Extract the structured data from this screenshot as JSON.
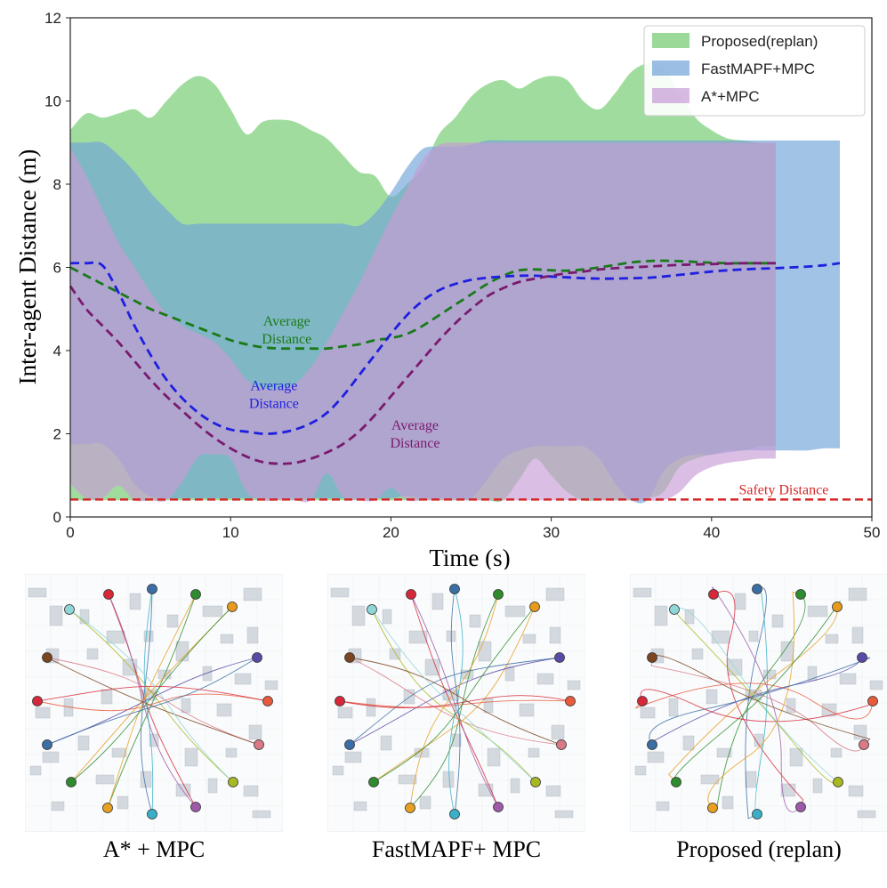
{
  "chart_data": {
    "type": "area",
    "title": "",
    "xlabel": "Time (s)",
    "ylabel": "Inter-agent Distance (m)",
    "xlim": [
      0,
      50
    ],
    "ylim": [
      0,
      12
    ],
    "xticks": [
      0,
      10,
      20,
      30,
      40,
      50
    ],
    "yticks": [
      0,
      2,
      4,
      6,
      8,
      10,
      12
    ],
    "legend_position": "top-right",
    "series": [
      {
        "name": "Proposed(replan)",
        "color": "#6fc96b",
        "x": [
          0,
          1,
          2,
          3,
          4,
          5,
          6,
          7,
          8,
          9,
          10,
          11,
          12,
          13,
          14,
          15,
          16,
          17,
          18,
          19,
          20,
          21,
          22,
          23,
          24,
          25,
          26,
          27,
          28,
          29,
          30,
          31,
          32,
          33,
          34,
          35,
          36,
          37,
          38,
          39,
          40,
          41,
          42,
          43,
          44
        ],
        "upper": [
          9.3,
          9.7,
          9.6,
          9.7,
          9.8,
          9.6,
          10.0,
          10.4,
          10.6,
          10.4,
          9.8,
          9.2,
          9.5,
          9.55,
          9.5,
          9.3,
          9.1,
          8.7,
          8.3,
          8.2,
          7.7,
          8.0,
          8.4,
          9.2,
          9.6,
          10.1,
          10.4,
          10.5,
          10.3,
          10.5,
          10.6,
          10.5,
          10.0,
          9.8,
          10.2,
          10.7,
          10.9,
          10.8,
          10.2,
          9.6,
          9.3,
          9.1,
          9.05,
          9.0,
          9.0
        ],
        "lower": [
          0.4,
          0.4,
          0.4,
          0.4,
          0.4,
          0.4,
          0.4,
          0.4,
          0.4,
          0.4,
          0.4,
          0.4,
          0.4,
          0.4,
          0.4,
          0.4,
          0.4,
          0.4,
          0.4,
          0.4,
          0.4,
          0.4,
          0.4,
          0.4,
          0.4,
          0.4,
          0.4,
          0.4,
          0.9,
          1.4,
          1.0,
          0.6,
          0.4,
          0.4,
          0.4,
          0.4,
          0.45,
          0.6,
          1.2,
          1.4,
          1.5,
          1.6,
          1.6,
          1.7,
          1.7
        ],
        "average": [
          6.0,
          5.8,
          5.6,
          5.4,
          5.2,
          5.0,
          4.85,
          4.7,
          4.55,
          4.4,
          4.25,
          4.15,
          4.08,
          4.05,
          4.05,
          4.05,
          4.05,
          4.1,
          4.15,
          4.25,
          4.3,
          4.4,
          4.6,
          4.85,
          5.1,
          5.35,
          5.6,
          5.8,
          5.93,
          5.95,
          5.93,
          5.92,
          5.95,
          6.0,
          6.06,
          6.12,
          6.15,
          6.16,
          6.15,
          6.13,
          6.11,
          6.1,
          6.1,
          6.1,
          6.1
        ]
      },
      {
        "name": "FastMAPF+MPC",
        "color": "#6fa3d8",
        "x": [
          0,
          1,
          2,
          3,
          4,
          5,
          6,
          7,
          8,
          9,
          10,
          11,
          12,
          13,
          14,
          15,
          16,
          17,
          18,
          19,
          20,
          21,
          22,
          23,
          24,
          25,
          26,
          27,
          28,
          29,
          30,
          31,
          32,
          33,
          34,
          35,
          36,
          37,
          38,
          39,
          40,
          41,
          42,
          43,
          44,
          45,
          46,
          47,
          48
        ],
        "upper": [
          9.0,
          9.0,
          9.0,
          8.7,
          8.3,
          7.8,
          7.4,
          7.05,
          7.05,
          7.05,
          7.05,
          7.05,
          7.05,
          7.05,
          7.05,
          7.05,
          7.05,
          7.05,
          7.0,
          7.3,
          7.8,
          8.4,
          8.85,
          8.9,
          8.9,
          8.95,
          9.05,
          9.05,
          9.05,
          9.05,
          9.05,
          9.05,
          9.05,
          9.05,
          9.05,
          9.05,
          9.05,
          9.05,
          9.05,
          9.05,
          9.05,
          9.05,
          9.05,
          9.05,
          9.05,
          9.05,
          9.05,
          9.05,
          9.05
        ],
        "lower": [
          1.75,
          1.75,
          1.75,
          1.4,
          0.8,
          0.5,
          0.45,
          0.45,
          0.45,
          0.45,
          0.45,
          0.45,
          0.45,
          0.45,
          0.45,
          0.45,
          0.45,
          0.45,
          0.45,
          0.45,
          0.45,
          0.5,
          0.45,
          0.45,
          0.45,
          0.45,
          0.9,
          1.4,
          1.6,
          1.7,
          1.7,
          1.7,
          1.7,
          1.4,
          0.8,
          0.4,
          0.4,
          1.1,
          1.4,
          1.5,
          1.5,
          1.55,
          1.6,
          1.6,
          1.6,
          1.6,
          1.6,
          1.65,
          1.65
        ],
        "average": [
          6.1,
          6.1,
          6.05,
          5.4,
          4.6,
          3.9,
          3.3,
          2.85,
          2.5,
          2.25,
          2.1,
          2.05,
          2.0,
          2.02,
          2.1,
          2.25,
          2.5,
          2.9,
          3.4,
          3.9,
          4.4,
          4.85,
          5.2,
          5.45,
          5.6,
          5.7,
          5.75,
          5.78,
          5.8,
          5.8,
          5.78,
          5.76,
          5.74,
          5.73,
          5.73,
          5.74,
          5.75,
          5.78,
          5.82,
          5.86,
          5.9,
          5.93,
          5.95,
          5.97,
          5.98,
          6.0,
          6.02,
          6.05,
          6.1
        ]
      },
      {
        "name": "A*+MPC",
        "color": "#c79bd6",
        "x": [
          0,
          1,
          2,
          3,
          4,
          5,
          6,
          7,
          8,
          9,
          10,
          11,
          12,
          13,
          14,
          15,
          16,
          17,
          18,
          19,
          20,
          21,
          22,
          23,
          24,
          25,
          26,
          27,
          28,
          29,
          30,
          31,
          32,
          33,
          34,
          35,
          36,
          37,
          38,
          39,
          40,
          41,
          42,
          43,
          44
        ],
        "upper": [
          8.9,
          8.2,
          7.4,
          6.6,
          6.0,
          5.4,
          4.9,
          4.6,
          4.4,
          4.2,
          3.8,
          3.3,
          3.1,
          3.1,
          3.2,
          3.6,
          4.2,
          4.9,
          5.6,
          6.4,
          7.2,
          7.9,
          8.6,
          8.95,
          9.0,
          9.0,
          9.0,
          9.0,
          9.0,
          9.0,
          9.0,
          9.0,
          9.0,
          9.0,
          9.0,
          9.0,
          9.0,
          9.0,
          9.0,
          9.0,
          9.0,
          9.0,
          9.0,
          9.0,
          9.0
        ],
        "lower": [
          0.8,
          0.45,
          0.45,
          0.75,
          0.4,
          0.4,
          0.4,
          0.85,
          1.45,
          1.5,
          1.4,
          0.6,
          0.4,
          0.4,
          0.4,
          0.4,
          1.05,
          0.5,
          0.4,
          0.4,
          0.7,
          0.4,
          0.4,
          0.4,
          0.4,
          0.4,
          0.4,
          0.4,
          0.4,
          0.4,
          0.4,
          0.4,
          0.4,
          0.4,
          0.4,
          0.4,
          0.4,
          0.4,
          0.6,
          1.0,
          1.2,
          1.3,
          1.35,
          1.4,
          1.4
        ],
        "average": [
          5.55,
          5.0,
          4.6,
          4.2,
          3.75,
          3.3,
          2.9,
          2.55,
          2.2,
          1.9,
          1.65,
          1.45,
          1.32,
          1.28,
          1.3,
          1.4,
          1.55,
          1.75,
          2.05,
          2.45,
          2.9,
          3.35,
          3.8,
          4.25,
          4.65,
          5.0,
          5.3,
          5.5,
          5.65,
          5.73,
          5.8,
          5.86,
          5.9,
          5.95,
          5.98,
          6.0,
          6.02,
          6.04,
          6.06,
          6.07,
          6.08,
          6.09,
          6.1,
          6.1,
          6.1
        ]
      }
    ],
    "safety_distance": {
      "value": 0.42,
      "label": "Safety Distance",
      "color": "#d62728"
    },
    "annotations": [
      {
        "text_lines": [
          "Average",
          "Distance"
        ],
        "series": "Proposed(replan)",
        "x": 13.5,
        "y": 4.6
      },
      {
        "text_lines": [
          "Average",
          "Distance"
        ],
        "series": "FastMAPF+MPC",
        "x": 12.7,
        "y": 3.05
      },
      {
        "text_lines": [
          "Average",
          "Distance"
        ],
        "series": "A*+MPC",
        "x": 21.5,
        "y": 2.1
      }
    ]
  },
  "panels": [
    {
      "caption": "A* + MPC",
      "pattern": "center"
    },
    {
      "caption": "FastMAPF+ MPC",
      "pattern": "center"
    },
    {
      "caption": "Proposed (replan)",
      "pattern": "loops"
    }
  ],
  "agent_colors": [
    "#d62839",
    "#3a6ea5",
    "#2e8b2e",
    "#e89a1c",
    "#5a4aa8",
    "#e85a3c",
    "#d97a86",
    "#a8b820",
    "#9d5aa8",
    "#3ab0c8",
    "#e8a020",
    "#2e8b2e",
    "#3a6ea5",
    "#d62839",
    "#7a4520",
    "#8fd6d6"
  ]
}
